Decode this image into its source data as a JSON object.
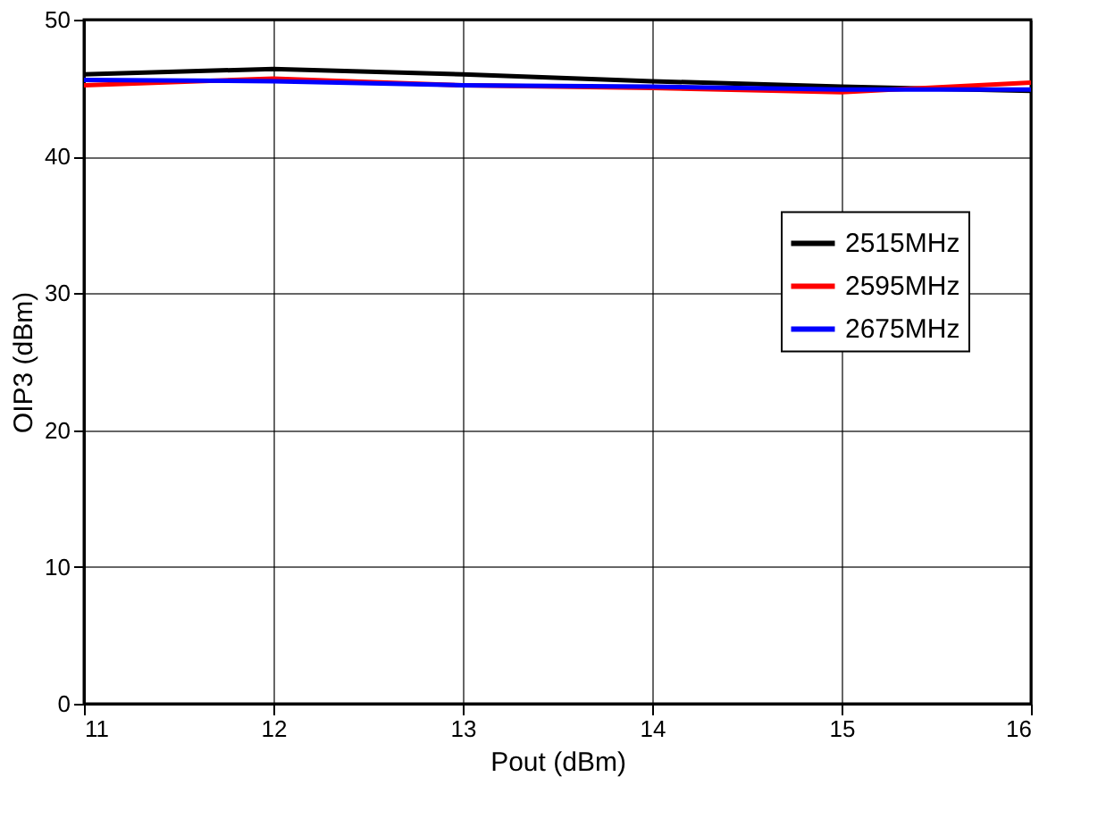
{
  "chart_data": {
    "type": "line",
    "xlabel": "Pout (dBm)",
    "ylabel": "OIP3 (dBm)",
    "x": [
      11,
      12,
      13,
      14,
      15,
      16
    ],
    "series": [
      {
        "name": "2515MHz",
        "color": "#000000",
        "values": [
          46.0,
          46.4,
          46.0,
          45.5,
          45.1,
          44.8
        ]
      },
      {
        "name": "2595MHz",
        "color": "#ff0000",
        "values": [
          45.2,
          45.7,
          45.2,
          45.0,
          44.7,
          45.4
        ]
      },
      {
        "name": "2675MHz",
        "color": "#0000ff",
        "values": [
          45.6,
          45.5,
          45.2,
          45.1,
          44.9,
          44.9
        ]
      }
    ],
    "xlim": [
      11,
      16
    ],
    "xticks": [
      11,
      12,
      13,
      14,
      15,
      16
    ],
    "ylim": [
      0,
      50
    ],
    "yticks": [
      0,
      10,
      20,
      30,
      40,
      50
    ],
    "grid": true,
    "legend": "right",
    "marker": "none",
    "line_style": "solid"
  }
}
